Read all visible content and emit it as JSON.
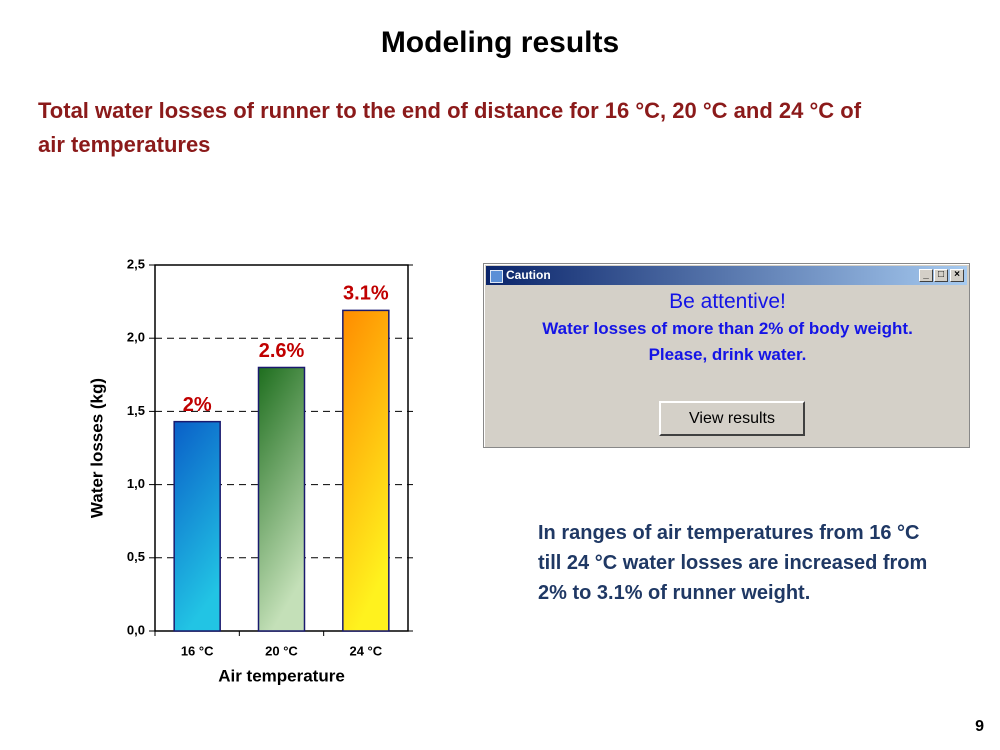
{
  "title": "Modeling results",
  "subtitle_lines": [
    "Total water losses of runner to the end of distance for 16 °C, 20 °C and 24 °C of",
    "air temperatures"
  ],
  "chart_data": {
    "type": "bar",
    "y_label": "Water  losses  (kg)",
    "x_label": "Air temperature",
    "categories": [
      "16 °C",
      "20 °C",
      "24 °C"
    ],
    "values": [
      1.43,
      1.8,
      2.19
    ],
    "annotations": [
      "2%",
      "2.6%",
      "3.1%"
    ],
    "gradients": [
      [
        "#0a5fc8",
        "#22c4e4"
      ],
      [
        "#1e6e1e",
        "#c4e0b8"
      ],
      [
        "#ff8c00",
        "#fff21e"
      ]
    ],
    "annotation_color": "#c00000",
    "ylim": [
      0,
      2.5
    ],
    "yticks": [
      {
        "value": 0,
        "label": "0,0"
      },
      {
        "value": 0.5,
        "label": "0,5"
      },
      {
        "value": 1,
        "label": "1,0"
      },
      {
        "value": 1.5,
        "label": "1,5"
      },
      {
        "value": 2,
        "label": "2,0"
      },
      {
        "value": 2.5,
        "label": "2,5"
      }
    ],
    "grid": true
  },
  "dialog": {
    "title": "Caution",
    "heading": "Be attentive!",
    "lines": [
      "Water losses of more than 2% of body weight.",
      "Please, drink water."
    ],
    "button": "View results"
  },
  "note_lines": [
    "In ranges of air temperatures from 16 °C",
    "till 24 °C water losses are increased from",
    "2% to 3.1%  of runner weight."
  ],
  "page_number": "9"
}
